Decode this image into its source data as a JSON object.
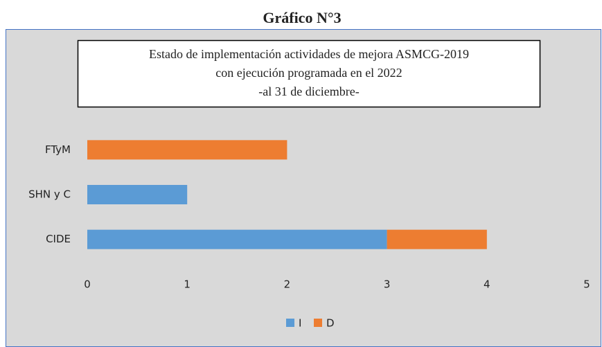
{
  "heading": "Gráfico N°3",
  "chart_data": {
    "type": "stacked-barh",
    "title": [
      "Estado de implementación actividades de mejora ASMCG-2019",
      "con ejecución programada en el 2022",
      "-al 31 de diciembre-"
    ],
    "categories": [
      "FTyM",
      "SHN y C",
      "CIDE"
    ],
    "series": [
      {
        "name": "I",
        "color": "#5b9bd5",
        "values": [
          0,
          1,
          3
        ]
      },
      {
        "name": "D",
        "color": "#ed7d31",
        "values": [
          2,
          0,
          1
        ]
      }
    ],
    "xlim": [
      0,
      5
    ],
    "xticks": [
      0,
      1,
      2,
      3,
      4,
      5
    ],
    "grid": false,
    "legend": "bottom"
  }
}
